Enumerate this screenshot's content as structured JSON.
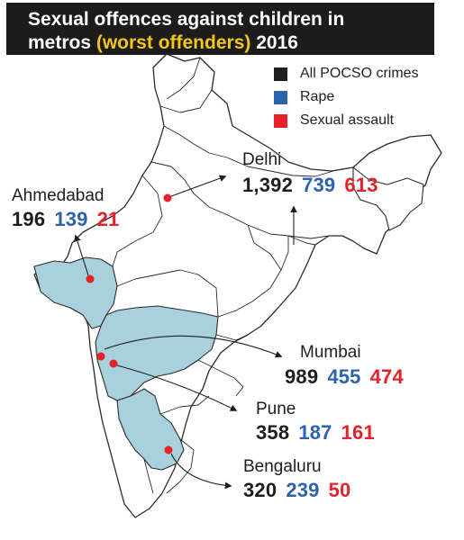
{
  "title": {
    "line1": "Sexual offences against children in",
    "line2_pre": "metros ",
    "line2_highlight": "(worst offenders)",
    "line2_post": " 2016"
  },
  "legend": [
    {
      "label": "All POCSO crimes",
      "color": "#1e1e1e"
    },
    {
      "label": "Rape",
      "color": "#2b63ae"
    },
    {
      "label": "Sexual assault",
      "color": "#e5212a"
    }
  ],
  "colors": {
    "highlighted_state": "#a8d0dd",
    "land": "#ffffff",
    "border": "#2a2a2a",
    "city_dot": "#e5212a"
  },
  "highlighted_states": [
    "Gujarat",
    "Maharashtra",
    "Karnataka"
  ],
  "cities": [
    {
      "name": "Delhi",
      "all": "1,392",
      "rape": "739",
      "assault": "613"
    },
    {
      "name": "Ahmedabad",
      "all": "196",
      "rape": "139",
      "assault": "21"
    },
    {
      "name": "Mumbai",
      "all": "989",
      "rape": "455",
      "assault": "474"
    },
    {
      "name": "Pune",
      "all": "358",
      "rape": "187",
      "assault": "161"
    },
    {
      "name": "Bengaluru",
      "all": "320",
      "rape": "239",
      "assault": "50"
    }
  ]
}
